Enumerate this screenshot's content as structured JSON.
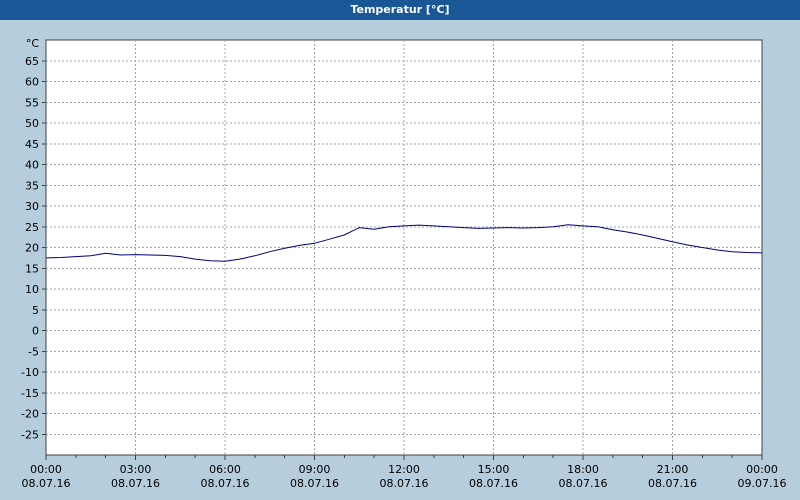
{
  "window": {
    "title": "Temperatur [°C]",
    "titlebar_color": "#1a5796",
    "background_color": "#b6cdde"
  },
  "chart_data": {
    "type": "line",
    "title": "Temperatur [°C]",
    "ylabel": "°C",
    "xlabel": "",
    "ylim": [
      -30,
      70
    ],
    "ytick_step": 5,
    "yticks": [
      65,
      60,
      55,
      50,
      45,
      40,
      35,
      30,
      25,
      20,
      15,
      10,
      5,
      0,
      -5,
      -10,
      -15,
      -20,
      -25
    ],
    "x_hours_range": [
      0,
      24
    ],
    "grid": true,
    "grid_style": "dashed",
    "legend": "none",
    "colors": {
      "line": "#00007b",
      "grid": "#9aa5ad",
      "plot_border": "#404040",
      "plot_background": "#ffffff",
      "label_text": "#000000"
    },
    "xticks": [
      {
        "hour": 0,
        "time": "00:00",
        "date": "08.07.16"
      },
      {
        "hour": 3,
        "time": "03:00",
        "date": "08.07.16"
      },
      {
        "hour": 6,
        "time": "06:00",
        "date": "08.07.16"
      },
      {
        "hour": 9,
        "time": "09:00",
        "date": "08.07.16"
      },
      {
        "hour": 12,
        "time": "12:00",
        "date": "08.07.16"
      },
      {
        "hour": 15,
        "time": "15:00",
        "date": "08.07.16"
      },
      {
        "hour": 18,
        "time": "18:00",
        "date": "08.07.16"
      },
      {
        "hour": 21,
        "time": "21:00",
        "date": "08.07.16"
      },
      {
        "hour": 24,
        "time": "00:00",
        "date": "09.07.16"
      }
    ],
    "series": [
      {
        "name": "Temperatur",
        "unit": "°C",
        "color": "#00007b",
        "points": [
          [
            0.0,
            17.5
          ],
          [
            0.5,
            17.6
          ],
          [
            1.0,
            17.8
          ],
          [
            1.5,
            18.0
          ],
          [
            2.0,
            18.6
          ],
          [
            2.5,
            18.2
          ],
          [
            3.0,
            18.3
          ],
          [
            3.5,
            18.2
          ],
          [
            4.0,
            18.1
          ],
          [
            4.5,
            17.8
          ],
          [
            5.0,
            17.2
          ],
          [
            5.5,
            16.8
          ],
          [
            6.0,
            16.7
          ],
          [
            6.5,
            17.2
          ],
          [
            7.0,
            18.0
          ],
          [
            7.5,
            19.0
          ],
          [
            8.0,
            19.8
          ],
          [
            8.5,
            20.5
          ],
          [
            9.0,
            21.0
          ],
          [
            9.5,
            22.0
          ],
          [
            10.0,
            23.0
          ],
          [
            10.5,
            24.8
          ],
          [
            11.0,
            24.4
          ],
          [
            11.5,
            25.0
          ],
          [
            12.0,
            25.2
          ],
          [
            12.5,
            25.4
          ],
          [
            13.0,
            25.2
          ],
          [
            13.5,
            25.0
          ],
          [
            14.0,
            24.8
          ],
          [
            14.5,
            24.6
          ],
          [
            15.0,
            24.7
          ],
          [
            15.5,
            24.8
          ],
          [
            16.0,
            24.7
          ],
          [
            16.5,
            24.8
          ],
          [
            17.0,
            25.0
          ],
          [
            17.5,
            25.5
          ],
          [
            18.0,
            25.2
          ],
          [
            18.5,
            25.0
          ],
          [
            19.0,
            24.3
          ],
          [
            19.5,
            23.7
          ],
          [
            20.0,
            23.0
          ],
          [
            20.5,
            22.2
          ],
          [
            21.0,
            21.4
          ],
          [
            21.5,
            20.6
          ],
          [
            22.0,
            20.0
          ],
          [
            22.5,
            19.4
          ],
          [
            23.0,
            19.0
          ],
          [
            23.5,
            18.8
          ],
          [
            24.0,
            18.7
          ]
        ]
      }
    ]
  }
}
